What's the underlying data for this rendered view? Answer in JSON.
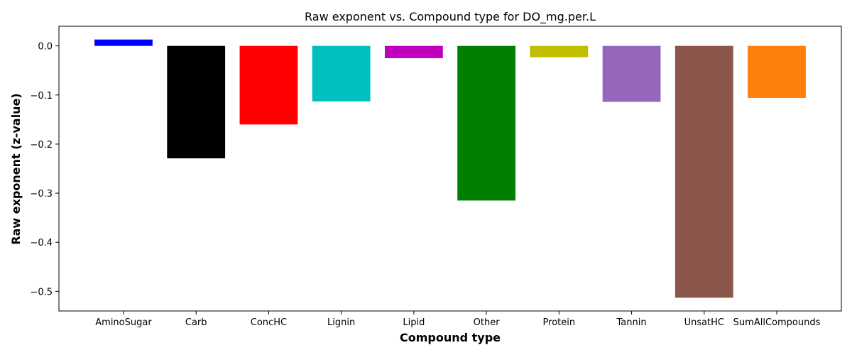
{
  "chart_data": {
    "type": "bar",
    "title": "Raw exponent vs. Compound type for DO_mg.per.L",
    "xlabel": "Compound type",
    "ylabel": "Raw exponent (z-value)",
    "categories": [
      "AminoSugar",
      "Carb",
      "ConcHC",
      "Lignin",
      "Lipid",
      "Other",
      "Protein",
      "Tannin",
      "UnsatHC",
      "SumAllCompounds"
    ],
    "values": [
      0.013,
      -0.229,
      -0.16,
      -0.113,
      -0.025,
      -0.315,
      -0.023,
      -0.114,
      -0.513,
      -0.106
    ],
    "colors": [
      "#0000ff",
      "#000000",
      "#ff0000",
      "#00bfbf",
      "#bf00bf",
      "#008000",
      "#bfbf00",
      "#9467bd",
      "#8c564b",
      "#ff7f0e"
    ],
    "ylim": [
      -0.54,
      0.04
    ],
    "yticks": [
      0.0,
      -0.1,
      -0.2,
      -0.3,
      -0.4,
      -0.5
    ],
    "ytick_labels": [
      "0.0",
      "−0.1",
      "−0.2",
      "−0.3",
      "−0.4",
      "−0.5"
    ],
    "grid": false,
    "legend": "none"
  }
}
